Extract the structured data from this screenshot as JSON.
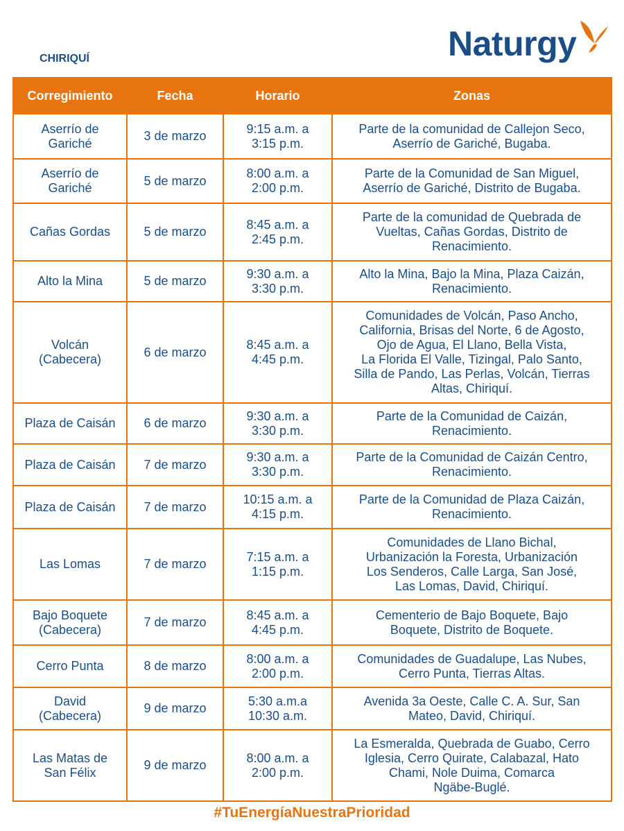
{
  "region": "CHIRIQUÍ",
  "logo": {
    "text": "Naturgy",
    "colors": {
      "text": "#1b4e86",
      "butterfly": "#e8740f"
    }
  },
  "table": {
    "headers": [
      "Corregimiento",
      "Fecha",
      "Horario",
      "Zonas"
    ],
    "rows": [
      {
        "corregimiento": "Aserrío de\nGariché",
        "fecha": "3 de marzo",
        "horario": "9:15 a.m. a\n3:15 p.m.",
        "zonas": "Parte de la comunidad de Callejon Seco,\nAserrío de Gariché, Bugaba."
      },
      {
        "corregimiento": "Aserrío de\nGariché",
        "fecha": "5 de marzo",
        "horario": "8:00 a.m. a\n2:00 p.m.",
        "zonas": "Parte de la Comunidad de San Miguel,\nAserrío de Gariché, Distrito de Bugaba."
      },
      {
        "corregimiento": "Cañas Gordas",
        "fecha": "5 de marzo",
        "horario": "8:45 a.m. a\n2:45 p.m.",
        "zonas": "Parte de la comunidad de Quebrada de\nVueltas, Cañas Gordas, Distrito de\nRenacimiento."
      },
      {
        "corregimiento": "Alto la Mina",
        "fecha": "5 de marzo",
        "horario": "9:30 a.m. a\n3:30 p.m.",
        "zonas": "Alto la Mina, Bajo la Mina, Plaza Caizán,\nRenacimiento."
      },
      {
        "corregimiento": "Volcán\n(Cabecera)",
        "fecha": "6 de marzo",
        "horario": "8:45 a.m. a\n4:45 p.m.",
        "zonas": "Comunidades de Volcán, Paso Ancho,\nCalifornia, Brisas del Norte, 6 de Agosto,\nOjo de Agua, El Llano, Bella Vista,\nLa Florida El Valle, Tizingal, Palo Santo,\nSilla de Pando, Las Perlas, Volcán, Tierras\nAltas, Chiriquí."
      },
      {
        "corregimiento": "Plaza de Caisán",
        "fecha": "6 de marzo",
        "horario": "9:30 a.m. a\n3:30 p.m.",
        "zonas": "Parte de la Comunidad de Caizán,\nRenacimiento."
      },
      {
        "corregimiento": "Plaza de Caisán",
        "fecha": "7 de marzo",
        "horario": "9:30 a.m. a\n3:30 p.m.",
        "zonas": "Parte de la Comunidad de Caizán Centro,\nRenacimiento."
      },
      {
        "corregimiento": "Plaza de Caisán",
        "fecha": "7 de marzo",
        "horario": "10:15 a.m. a\n4:15 p.m.",
        "zonas": "Parte de la Comunidad de Plaza Caizán,\nRenacimiento."
      },
      {
        "corregimiento": "Las Lomas",
        "fecha": "7 de marzo",
        "horario": "7:15 a.m. a\n1:15 p.m.",
        "zonas": "Comunidades de Llano Bichal,\nUrbanización la Foresta, Urbanización\nLos Senderos, Calle Larga, San José,\nLas Lomas, David, Chiriquí."
      },
      {
        "corregimiento": "Bajo Boquete\n(Cabecera)",
        "fecha": "7 de marzo",
        "horario": "8:45 a.m. a\n4:45 p.m.",
        "zonas": "Cementerio de Bajo Boquete, Bajo\nBoquete, Distrito de Boquete."
      },
      {
        "corregimiento": "Cerro Punta",
        "fecha": "8 de marzo",
        "horario": "8:00 a.m. a\n2:00 p.m.",
        "zonas": "Comunidades de Guadalupe, Las Nubes,\nCerro Punta, Tierras Altas."
      },
      {
        "corregimiento": "David\n(Cabecera)",
        "fecha": "9 de marzo",
        "horario": "5:30 a.m.a\n10:30 a.m.",
        "zonas": "Avenida 3a Oeste, Calle C. A. Sur, San\nMateo, David, Chiriquí."
      },
      {
        "corregimiento": "Las Matas de\nSan Félix",
        "fecha": "9 de marzo",
        "horario": "8:00 a.m. a\n2:00 p.m.",
        "zonas": "La Esmeralda, Quebrada de Guabo, Cerro\nIglesia, Cerro Quirate, Calabazal, Hato\nChami, Nole Duima, Comarca\nNgäbe-Buglé."
      }
    ]
  },
  "hashtag": "#TuEnergíaNuestraPrioridad",
  "colors": {
    "accent": "#e8740f",
    "text": "#1b4e86"
  }
}
